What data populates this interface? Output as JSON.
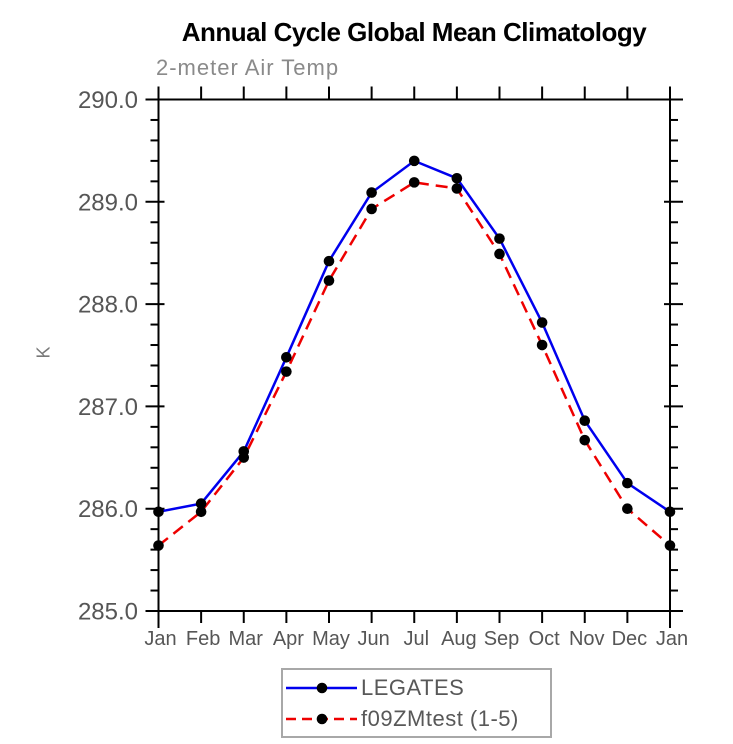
{
  "page": {
    "title": "Annual Cycle Global Mean Climatology",
    "subtitle": "2-meter Air Temp"
  },
  "chart_data": {
    "type": "line",
    "title": "Annual Cycle Global Mean Climatology",
    "subtitle": "2-meter Air Temp",
    "xlabel": "",
    "ylabel": "K",
    "categories": [
      "Jan",
      "Feb",
      "Mar",
      "Apr",
      "May",
      "Jun",
      "Jul",
      "Aug",
      "Sep",
      "Oct",
      "Nov",
      "Dec",
      "Jan"
    ],
    "series": [
      {
        "name": "LEGATES",
        "color": "#0000ee",
        "line_style": "solid",
        "marker": "filled-circle",
        "marker_color": "#000000",
        "values": [
          285.97,
          286.05,
          286.56,
          287.48,
          288.42,
          289.09,
          289.4,
          289.23,
          288.64,
          287.82,
          286.86,
          286.25,
          285.97
        ]
      },
      {
        "name": "f09ZMtest (1-5)",
        "color": "#ee0000",
        "line_style": "dashed",
        "marker": "filled-circle",
        "marker_color": "#000000",
        "values": [
          285.64,
          285.97,
          286.5,
          287.34,
          288.23,
          288.93,
          289.19,
          289.13,
          288.49,
          287.6,
          286.67,
          286.0,
          285.64
        ]
      }
    ],
    "ylim": [
      285.0,
      290.0
    ],
    "ytick_major": [
      285.0,
      286.0,
      287.0,
      288.0,
      289.0,
      290.0
    ],
    "ytick_labels": [
      "285.0",
      "286.0",
      "287.0",
      "288.0",
      "289.0",
      "290.0"
    ],
    "ytick_minor_step": 0.2,
    "grid": false,
    "legend_position": "bottom-center",
    "axis_color": "#000000",
    "tick_label_color": "#565656"
  }
}
